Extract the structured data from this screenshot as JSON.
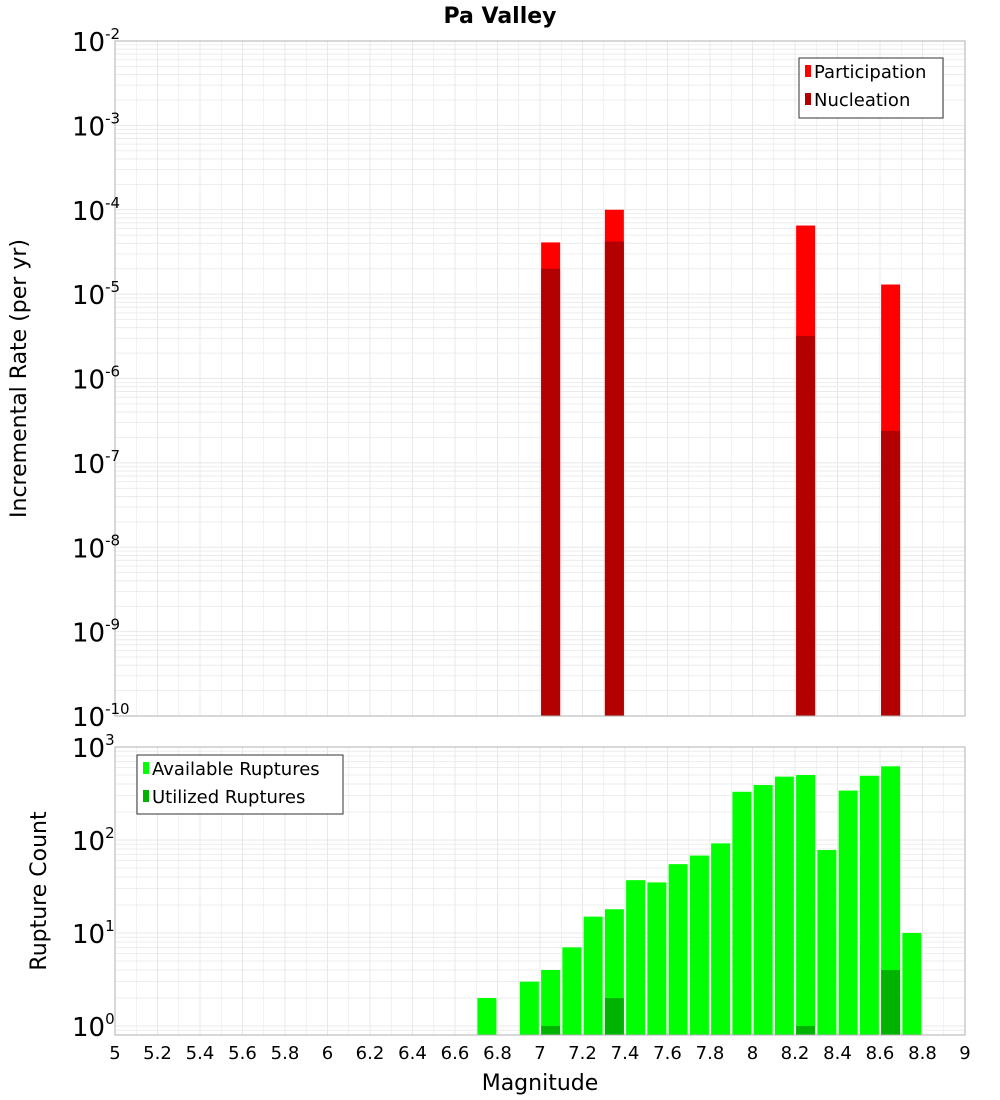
{
  "title": "Pa Valley",
  "xlabel": "Magnitude",
  "x_ticks": [
    "5",
    "5.2",
    "5.4",
    "5.6",
    "5.8",
    "6",
    "6.2",
    "6.4",
    "6.6",
    "6.8",
    "7",
    "7.2",
    "7.4",
    "7.6",
    "7.8",
    "8",
    "8.2",
    "8.4",
    "8.6",
    "8.8",
    "9"
  ],
  "colors": {
    "participation": "#ff0000",
    "nucleation": "#b30000",
    "available": "#00ff00",
    "utilized": "#00b300",
    "grid": "#e8e8e8",
    "frame": "#b0b0b0"
  },
  "chart_data": [
    {
      "type": "bar",
      "ylabel": "Incremental Rate (per yr)",
      "yscale": "log",
      "ylim": [
        1e-10,
        0.01
      ],
      "xlim": [
        5,
        9
      ],
      "y_ticks": [
        {
          "base": "10",
          "exp": "-10"
        },
        {
          "base": "10",
          "exp": "-9"
        },
        {
          "base": "10",
          "exp": "-8"
        },
        {
          "base": "10",
          "exp": "-7"
        },
        {
          "base": "10",
          "exp": "-6"
        },
        {
          "base": "10",
          "exp": "-5"
        },
        {
          "base": "10",
          "exp": "-4"
        },
        {
          "base": "10",
          "exp": "-3"
        },
        {
          "base": "10",
          "exp": "-2"
        }
      ],
      "legend": {
        "position": "top-right",
        "entries": [
          "Participation",
          "Nucleation"
        ]
      },
      "series": [
        {
          "name": "Participation",
          "x": [
            7.05,
            7.35,
            8.25,
            8.65
          ],
          "values": [
            4.1e-05,
            0.0001,
            6.5e-05,
            1.3e-05
          ]
        },
        {
          "name": "Nucleation",
          "x": [
            7.05,
            7.35,
            8.25,
            8.65
          ],
          "values": [
            2e-05,
            4.2e-05,
            3.2e-06,
            2.4e-07
          ]
        }
      ]
    },
    {
      "type": "bar",
      "ylabel": "Rupture Count",
      "yscale": "log",
      "ylim": [
        0.8,
        1000
      ],
      "xlim": [
        5,
        9
      ],
      "y_ticks": [
        {
          "base": "10",
          "exp": "0"
        },
        {
          "base": "10",
          "exp": "1"
        },
        {
          "base": "10",
          "exp": "2"
        },
        {
          "base": "10",
          "exp": "3"
        }
      ],
      "legend": {
        "position": "top-left",
        "entries": [
          "Available Ruptures",
          "Utilized Ruptures"
        ]
      },
      "series": [
        {
          "name": "Available Ruptures",
          "x": [
            6.75,
            6.95,
            7.05,
            7.15,
            7.25,
            7.35,
            7.45,
            7.55,
            7.65,
            7.75,
            7.85,
            7.95,
            8.05,
            8.15,
            8.25,
            8.35,
            8.45,
            8.55,
            8.65,
            8.75
          ],
          "values": [
            2,
            3,
            4,
            7,
            15,
            18,
            37,
            35,
            55,
            68,
            92,
            330,
            390,
            480,
            500,
            78,
            340,
            490,
            620,
            10
          ]
        },
        {
          "name": "Utilized Ruptures",
          "x": [
            7.05,
            7.35,
            8.25,
            8.65
          ],
          "values": [
            1,
            2,
            1,
            4
          ]
        }
      ]
    }
  ]
}
